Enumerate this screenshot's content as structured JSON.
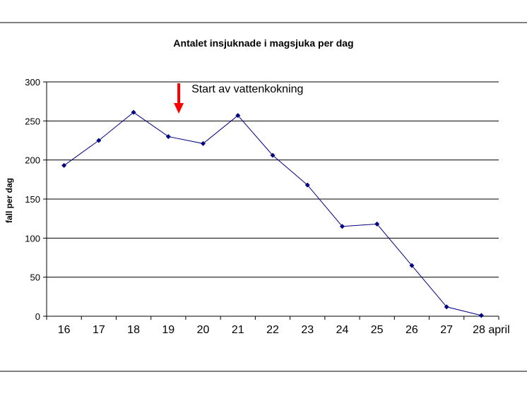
{
  "chart_data": {
    "type": "line",
    "title": "Antalet insjuknade i magsjuka per dag",
    "ylabel": "fall per dag",
    "xlabel": "",
    "categories": [
      "16",
      "17",
      "18",
      "19",
      "20",
      "21",
      "22",
      "23",
      "24",
      "25",
      "26",
      "27",
      "28 april"
    ],
    "series": [
      {
        "values": [
          193,
          225,
          261,
          230,
          221,
          257,
          206,
          168,
          115,
          118,
          65,
          12,
          1
        ]
      }
    ],
    "ylim": [
      0,
      300
    ],
    "yticks": [
      "0",
      "50",
      "100",
      "150",
      "200",
      "250",
      "300"
    ],
    "grid": "horizontal",
    "legend": "none",
    "annotation": {
      "text": "Start av vattenkokning",
      "category_position": 3.3,
      "arrow_color": "#ff0000"
    },
    "colors": {
      "series_line": "#000080",
      "marker": "#000080",
      "gridline": "#000000",
      "arrow": "#ff0000"
    }
  }
}
